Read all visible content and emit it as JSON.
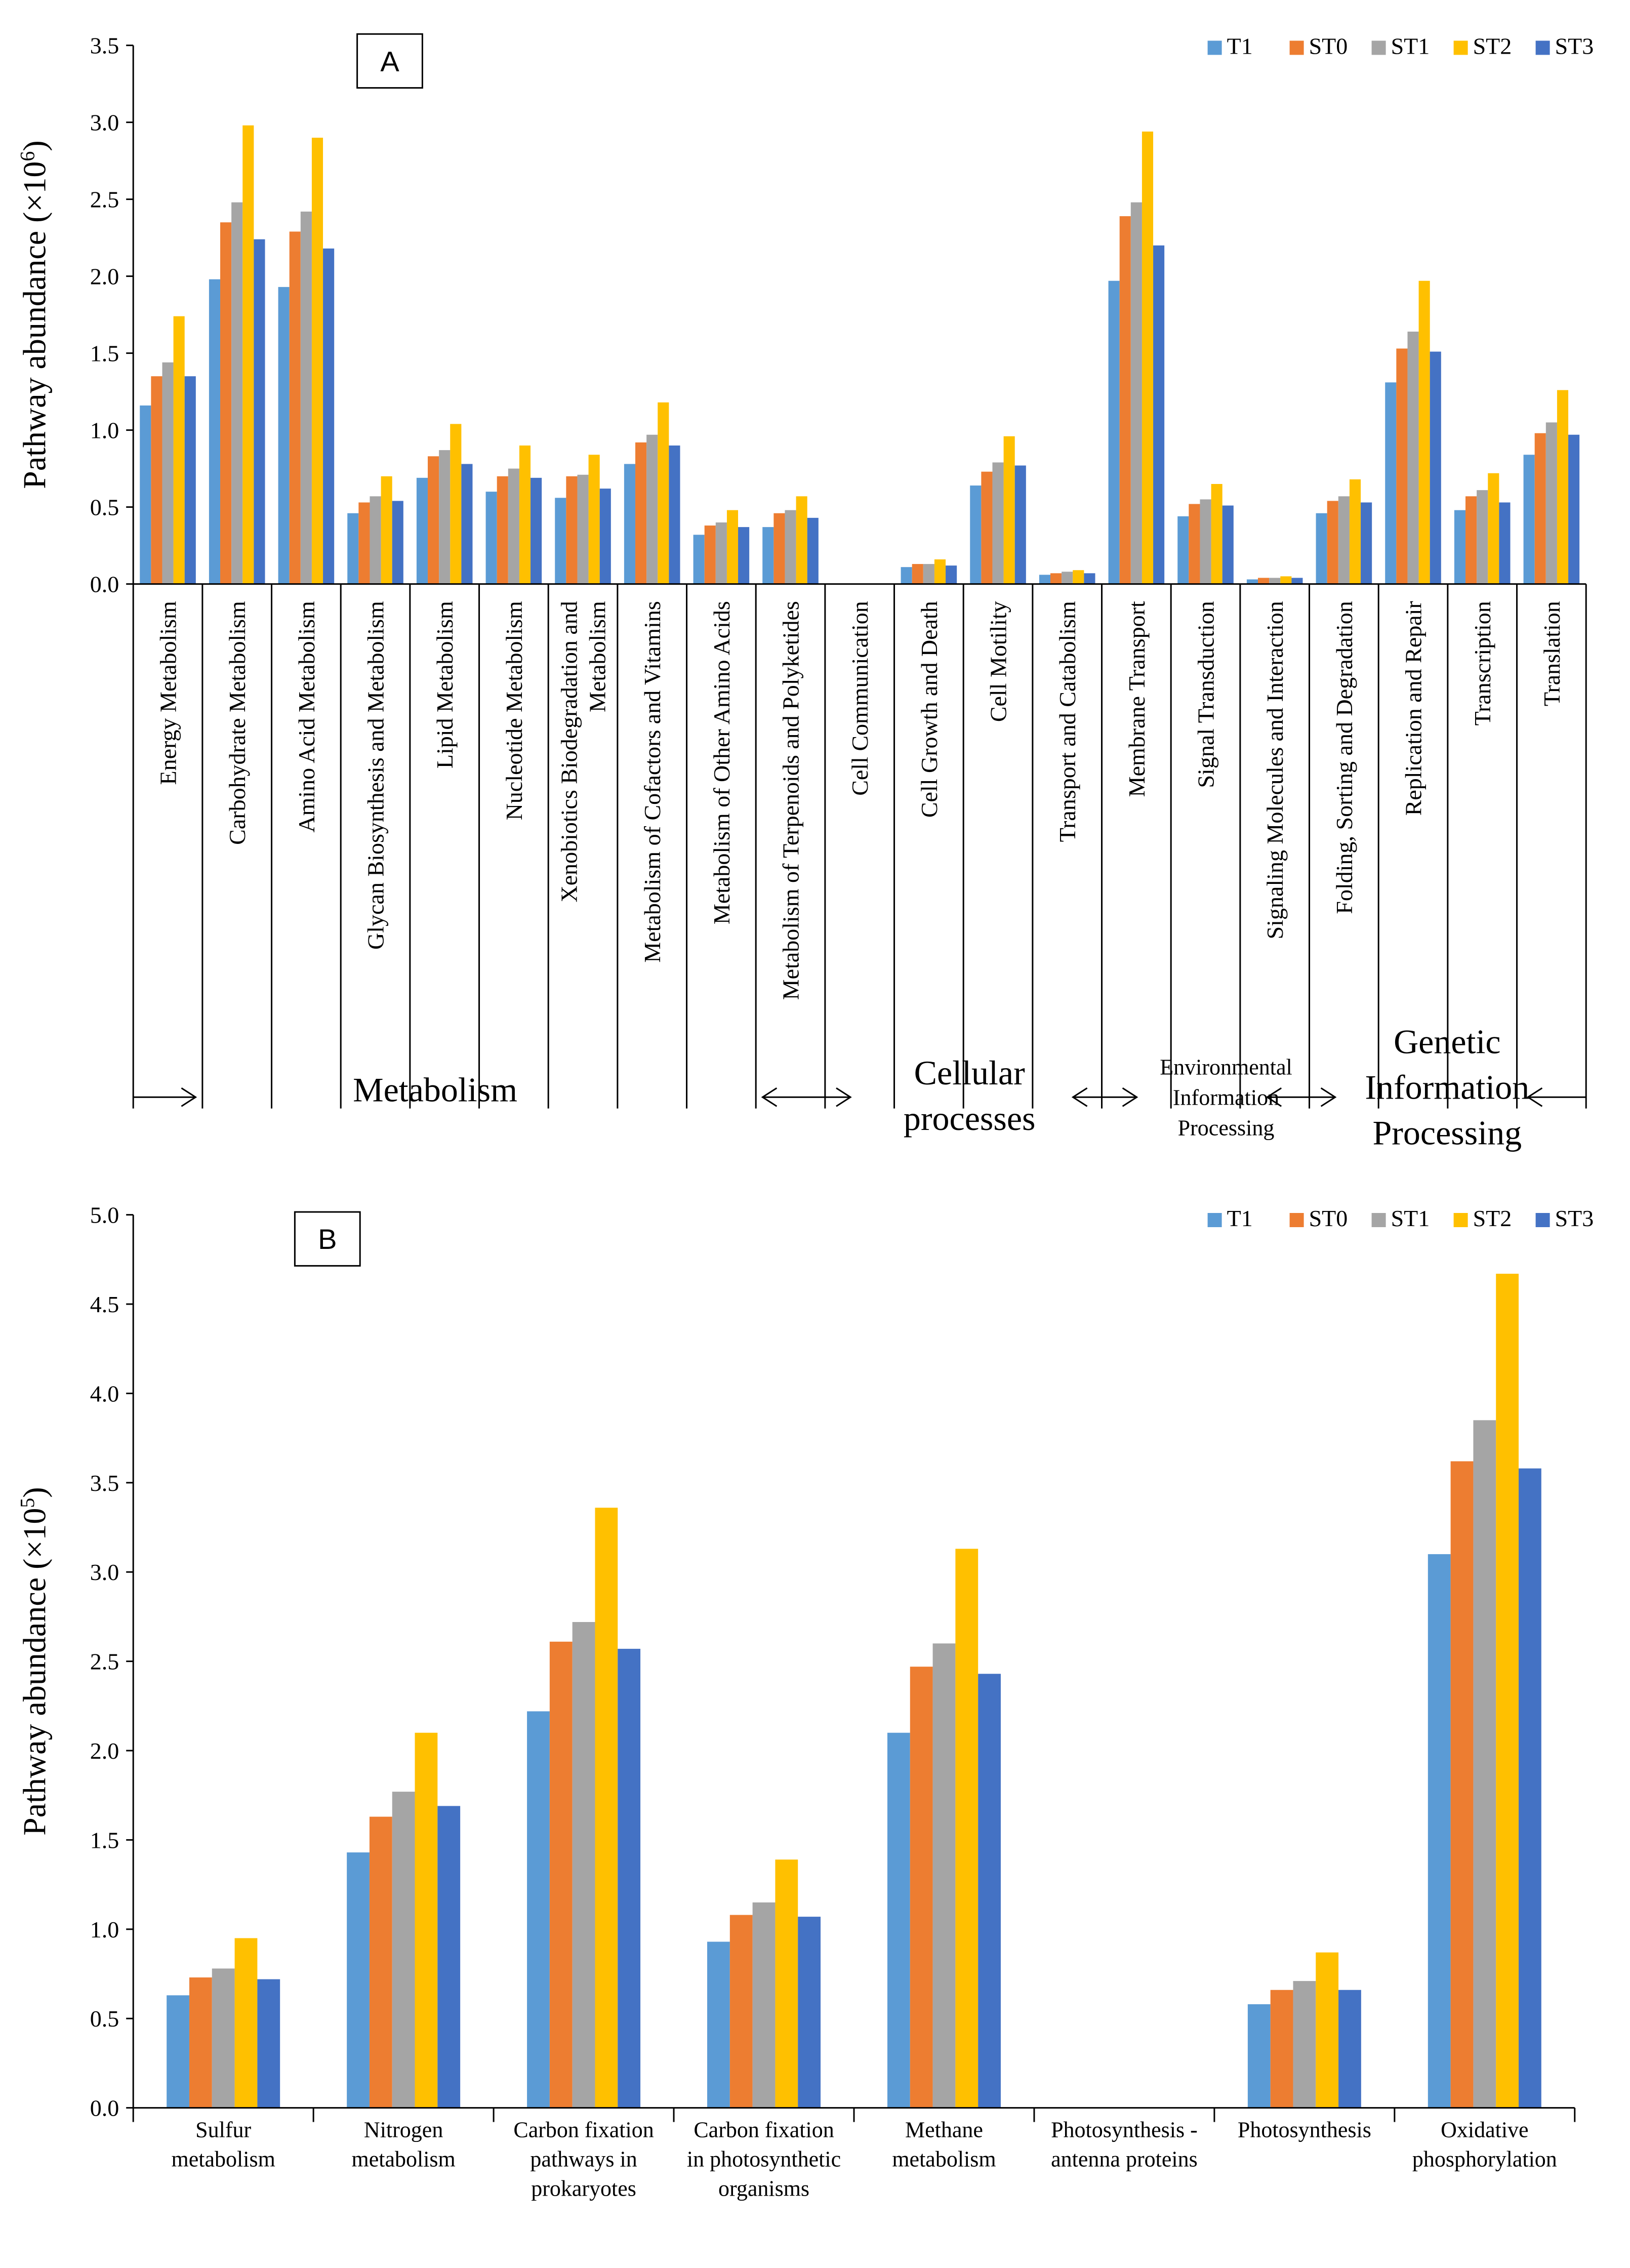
{
  "series_colors": {
    "T1": "#5B9BD5",
    "ST0": "#ED7D31",
    "ST1": "#A5A5A5",
    "ST2": "#FFC000",
    "ST3": "#4472C4"
  },
  "chart_data": [
    {
      "panel": "A",
      "type": "bar",
      "ylabel_prefix": "Pathway abundance (×10",
      "ylabel_exponent": "6",
      "ylabel_suffix": ")",
      "ylim": [
        0,
        3.5
      ],
      "yticks": [
        "0.0",
        "0.5",
        "1.0",
        "1.5",
        "2.0",
        "2.5",
        "3.0",
        "3.5"
      ],
      "legend": [
        "T1",
        "ST0",
        "ST1",
        "ST2",
        "ST3"
      ],
      "legend_position": "top-right",
      "categories": [
        [
          "Energy Metabolism"
        ],
        [
          "Carbohydrate Metabolism"
        ],
        [
          "Amino Acid Metabolism"
        ],
        [
          "Glycan Biosynthesis and Metabolism"
        ],
        [
          "Lipid Metabolism"
        ],
        [
          "Nucleotide Metabolism"
        ],
        [
          "Xenobiotics Biodegradation and",
          "Metabolism"
        ],
        [
          "Metabolism of Cofactors and Vitamins"
        ],
        [
          "Metabolism of Other Amino Acids"
        ],
        [
          "Metabolism of Terpenoids and Polyketides"
        ],
        [
          "Cell Communication"
        ],
        [
          "Cell Growth and Death"
        ],
        [
          "Cell Motility"
        ],
        [
          "Transport and Catabolism"
        ],
        [
          "Membrane Transport"
        ],
        [
          "Signal Transduction"
        ],
        [
          "Signaling Molecules and Interaction"
        ],
        [
          "Folding, Sorting and Degradation"
        ],
        [
          "Replication and Repair"
        ],
        [
          "Transcription"
        ],
        [
          "Translation"
        ]
      ],
      "series": [
        {
          "name": "T1",
          "values": [
            1.16,
            1.98,
            1.93,
            0.46,
            0.69,
            0.6,
            0.56,
            0.78,
            0.32,
            0.37,
            0.0,
            0.11,
            0.64,
            0.06,
            1.97,
            0.44,
            0.03,
            0.46,
            1.31,
            0.48,
            0.84
          ]
        },
        {
          "name": "ST0",
          "values": [
            1.35,
            2.35,
            2.29,
            0.53,
            0.83,
            0.7,
            0.7,
            0.92,
            0.38,
            0.46,
            0.0,
            0.13,
            0.73,
            0.07,
            2.39,
            0.52,
            0.04,
            0.54,
            1.53,
            0.57,
            0.98
          ]
        },
        {
          "name": "ST1",
          "values": [
            1.44,
            2.48,
            2.42,
            0.57,
            0.87,
            0.75,
            0.71,
            0.97,
            0.4,
            0.48,
            0.0,
            0.13,
            0.79,
            0.08,
            2.48,
            0.55,
            0.04,
            0.57,
            1.64,
            0.61,
            1.05
          ]
        },
        {
          "name": "ST2",
          "values": [
            1.74,
            2.98,
            2.9,
            0.7,
            1.04,
            0.9,
            0.84,
            1.18,
            0.48,
            0.57,
            0.0,
            0.16,
            0.96,
            0.09,
            2.94,
            0.65,
            0.05,
            0.68,
            1.97,
            0.72,
            1.26
          ]
        },
        {
          "name": "ST3",
          "values": [
            1.35,
            2.24,
            2.18,
            0.54,
            0.78,
            0.69,
            0.62,
            0.9,
            0.37,
            0.43,
            0.0,
            0.12,
            0.77,
            0.07,
            2.2,
            0.51,
            0.04,
            0.53,
            1.51,
            0.53,
            0.97
          ]
        }
      ],
      "groups": [
        {
          "lines": [
            "Metabolism"
          ],
          "start": 0,
          "end": 9
        },
        {
          "lines": [
            "Cellular",
            "processes"
          ],
          "start": 10,
          "end": 13
        },
        {
          "lines": [
            "Environmental",
            "Information",
            "Processing"
          ],
          "start": 14,
          "end": 16
        },
        {
          "lines": [
            "Genetic",
            "Information",
            "Processing"
          ],
          "start": 17,
          "end": 20
        }
      ]
    },
    {
      "panel": "B",
      "type": "bar",
      "ylabel_prefix": "Pathway abundance (×10",
      "ylabel_exponent": "5",
      "ylabel_suffix": ")",
      "ylim": [
        0,
        5.0
      ],
      "yticks": [
        "0.0",
        "0.5",
        "1.0",
        "1.5",
        "2.0",
        "2.5",
        "3.0",
        "3.5",
        "4.0",
        "4.5",
        "5.0"
      ],
      "legend": [
        "T1",
        "ST0",
        "ST1",
        "ST2",
        "ST3"
      ],
      "legend_position": "top-right",
      "categories": [
        [
          "Sulfur",
          "metabolism"
        ],
        [
          "Nitrogen",
          "metabolism"
        ],
        [
          "Carbon fixation",
          "pathways in",
          "prokaryotes"
        ],
        [
          "Carbon fixation",
          "in photosynthetic",
          "organisms"
        ],
        [
          "Methane",
          "metabolism"
        ],
        [
          "Photosynthesis -",
          "antenna proteins"
        ],
        [
          "Photosynthesis"
        ],
        [
          "Oxidative",
          "phosphorylation"
        ]
      ],
      "series": [
        {
          "name": "T1",
          "values": [
            0.63,
            1.43,
            2.22,
            0.93,
            2.1,
            0.0,
            0.58,
            3.1
          ]
        },
        {
          "name": "ST0",
          "values": [
            0.73,
            1.63,
            2.61,
            1.08,
            2.47,
            0.0,
            0.66,
            3.62
          ]
        },
        {
          "name": "ST1",
          "values": [
            0.78,
            1.77,
            2.72,
            1.15,
            2.6,
            0.0,
            0.71,
            3.85
          ]
        },
        {
          "name": "ST2",
          "values": [
            0.95,
            2.1,
            3.36,
            1.39,
            3.13,
            0.0,
            0.87,
            4.67
          ]
        },
        {
          "name": "ST3",
          "values": [
            0.72,
            1.69,
            2.57,
            1.07,
            2.43,
            0.0,
            0.66,
            3.58
          ]
        }
      ]
    }
  ]
}
